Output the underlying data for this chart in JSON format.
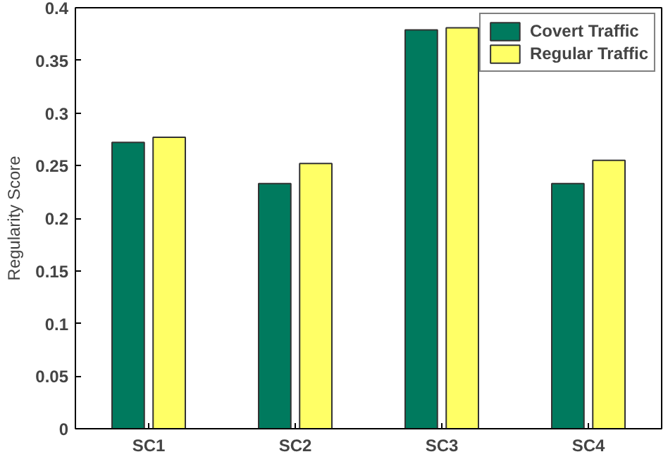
{
  "chart_data": {
    "type": "bar",
    "ylabel": "Regularity Score",
    "categories": [
      "SC1",
      "SC2",
      "SC3",
      "SC4"
    ],
    "series": [
      {
        "name": "Covert Traffic",
        "color": "#007a5e",
        "values": [
          0.272,
          0.233,
          0.379,
          0.233
        ]
      },
      {
        "name": "Regular Traffic",
        "color": "#ffff66",
        "values": [
          0.277,
          0.252,
          0.381,
          0.255
        ]
      }
    ],
    "ylim": [
      0,
      0.4
    ],
    "yticks": [
      0,
      0.05,
      0.1,
      0.15,
      0.2,
      0.25,
      0.3,
      0.35,
      0.4
    ],
    "grid": false,
    "legend": "top right"
  }
}
